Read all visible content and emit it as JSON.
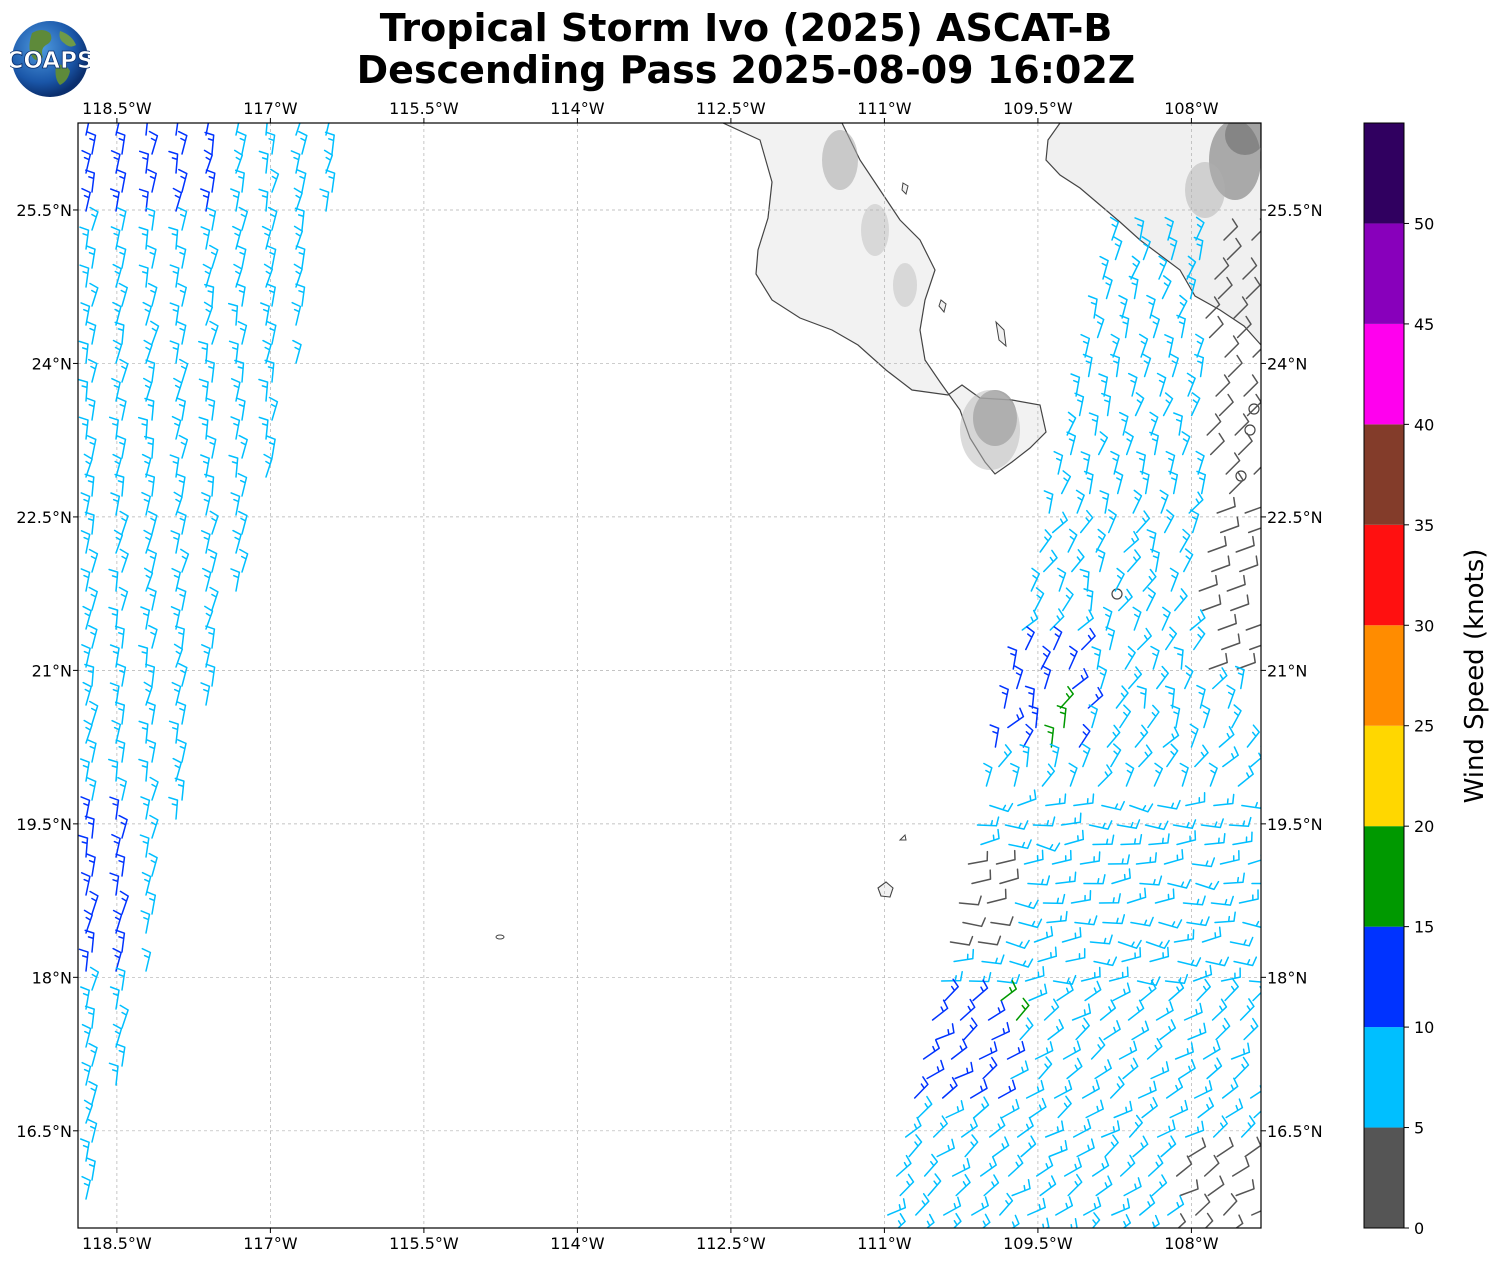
{
  "title": {
    "line1": "Tropical Storm Ivo (2025) ASCAT-B",
    "line2": "Descending Pass 2025-08-09 16:02Z"
  },
  "logo": {
    "text": "COAPS",
    "icon": "globe-logo-icon"
  },
  "map": {
    "lon_range": [
      -118.88,
      -107.32
    ],
    "lat_range": [
      15.55,
      26.35
    ],
    "lon_ticks": [
      {
        "value": -118.5,
        "label": "118.5°W"
      },
      {
        "value": -117.0,
        "label": "117°W"
      },
      {
        "value": -115.5,
        "label": "115.5°W"
      },
      {
        "value": -114.0,
        "label": "114°W"
      },
      {
        "value": -112.5,
        "label": "112.5°W"
      },
      {
        "value": -111.0,
        "label": "111°W"
      },
      {
        "value": -109.5,
        "label": "109.5°W"
      },
      {
        "value": -108.0,
        "label": "108°W"
      }
    ],
    "lat_ticks": [
      {
        "value": 16.5,
        "label": "16.5°N"
      },
      {
        "value": 18.0,
        "label": "18°N"
      },
      {
        "value": 19.5,
        "label": "19.5°N"
      },
      {
        "value": 21.0,
        "label": "21°N"
      },
      {
        "value": 22.5,
        "label": "22.5°N"
      },
      {
        "value": 24.0,
        "label": "24°N"
      },
      {
        "value": 25.5,
        "label": "25.5°N"
      }
    ],
    "gridlines": true
  },
  "colorbar": {
    "label": "Wind Speed (knots)",
    "ticks": [
      "0",
      "5",
      "10",
      "15",
      "20",
      "25",
      "30",
      "35",
      "40",
      "45",
      "50"
    ],
    "bins": [
      {
        "from": 0,
        "to": 5,
        "color": "#555555"
      },
      {
        "from": 5,
        "to": 10,
        "color": "#00bfff"
      },
      {
        "from": 10,
        "to": 15,
        "color": "#0033ff"
      },
      {
        "from": 15,
        "to": 20,
        "color": "#009900"
      },
      {
        "from": 20,
        "to": 25,
        "color": "#ffd700"
      },
      {
        "from": 25,
        "to": 30,
        "color": "#ff8c00"
      },
      {
        "from": 30,
        "to": 35,
        "color": "#ff1010"
      },
      {
        "from": 35,
        "to": 40,
        "color": "#833c2a"
      },
      {
        "from": 40,
        "to": 45,
        "color": "#ff00ee"
      },
      {
        "from": 45,
        "to": 50,
        "color": "#8800bb"
      },
      {
        "from": 50,
        "to": 55,
        "color": "#300060"
      }
    ]
  }
}
